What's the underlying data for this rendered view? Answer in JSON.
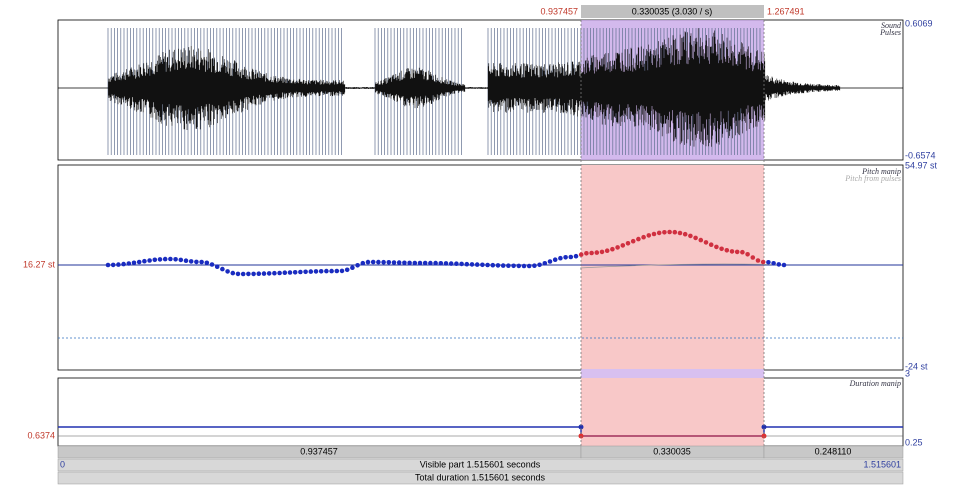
{
  "selection": {
    "start": "0.937457",
    "length": "0.330035 (3.030 / s)",
    "end": "1.267491"
  },
  "sound": {
    "labels": [
      "Sound",
      "Pulses"
    ],
    "max": "0.6069",
    "min": "-0.6574"
  },
  "pitch": {
    "labels": [
      "Pitch manip",
      "Pitch from pulses"
    ],
    "max": "54.97 st",
    "current": "16.27 st",
    "min": "-24 st"
  },
  "duration": {
    "label": "Duration manip",
    "max": "3",
    "current": "0.6374",
    "min": "0.25"
  },
  "segments": [
    "0.937457",
    "0.330035",
    "0.248110"
  ],
  "visible": {
    "start": "0",
    "label": "Visible part 1.515601 seconds",
    "end": "1.515601"
  },
  "total": "Total duration 1.515601 seconds"
}
